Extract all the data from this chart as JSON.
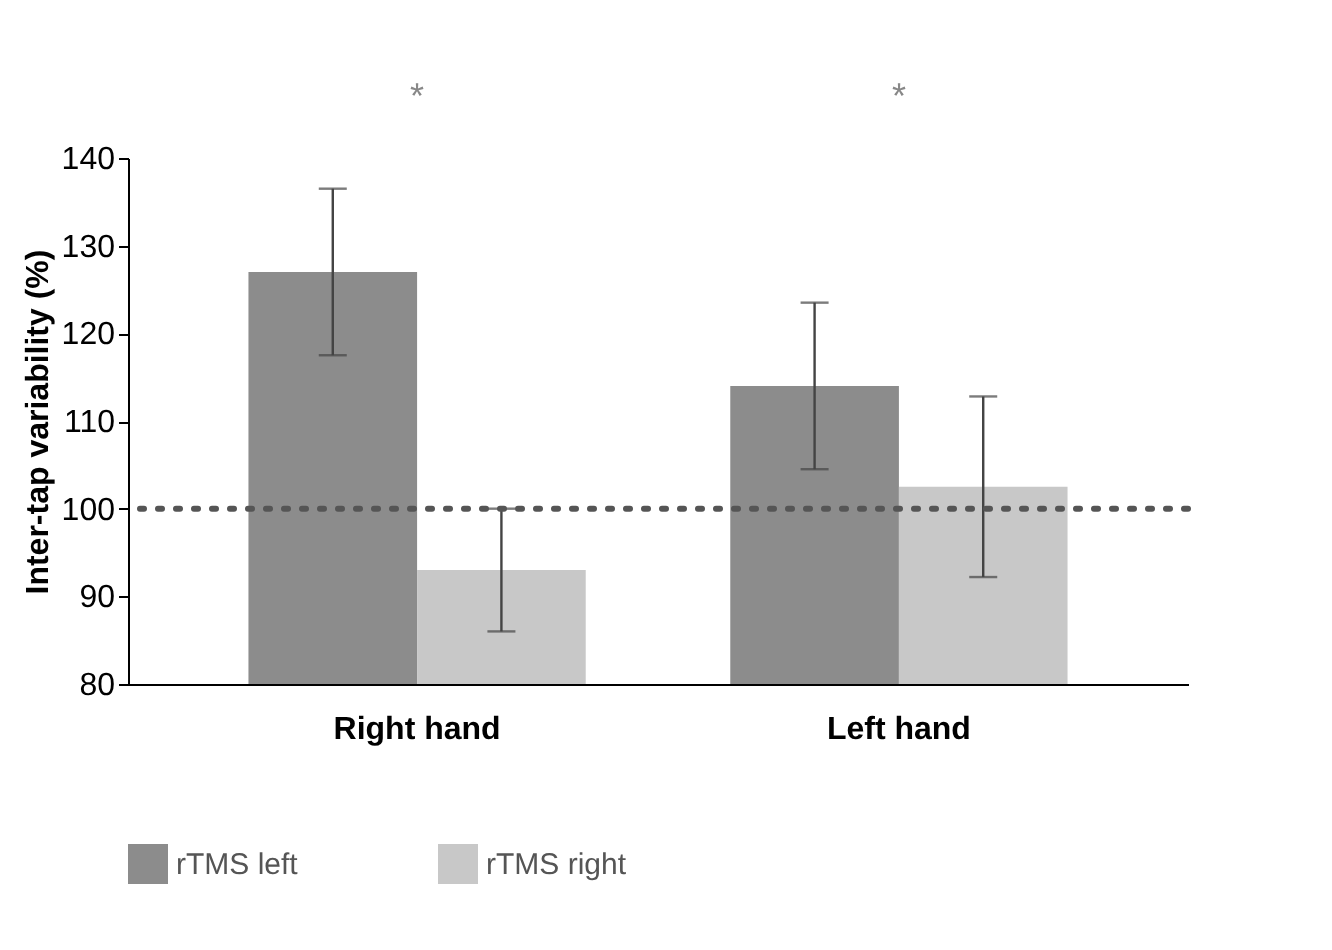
{
  "chart_data": {
    "type": "bar",
    "ylabel": "Inter-tap variability (%)",
    "categories": [
      "Right hand",
      "Left hand"
    ],
    "series": [
      {
        "name": "rTMS left",
        "color": "#8c8c8c",
        "values": [
          127,
          114
        ],
        "errors": [
          9.5,
          9.5
        ]
      },
      {
        "name": "rTMS right",
        "color": "#c8c8c8",
        "values": [
          93,
          102.5
        ],
        "errors": [
          7,
          10.3
        ]
      }
    ],
    "ylim": [
      80,
      140
    ],
    "yticks": [
      80,
      90,
      100,
      110,
      120,
      130,
      140
    ],
    "ref_lines": [
      {
        "axis": "y",
        "value": 100,
        "color": "#555555",
        "line_style": "dotted"
      }
    ],
    "annotations": [
      "*",
      "*"
    ],
    "legend": "bottom",
    "grid": false
  }
}
